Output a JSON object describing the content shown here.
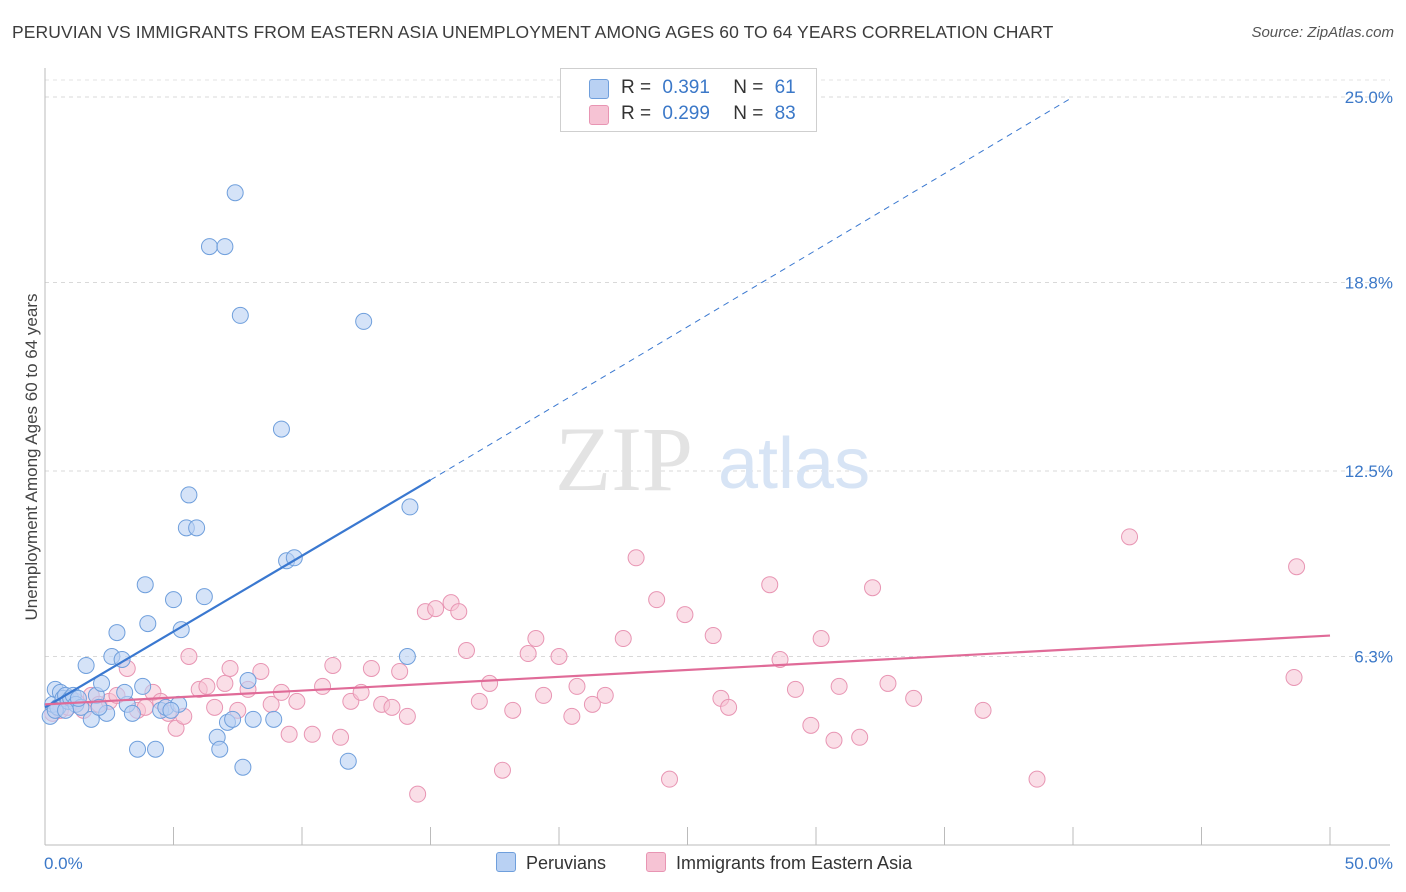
{
  "title": "PERUVIAN VS IMMIGRANTS FROM EASTERN ASIA UNEMPLOYMENT AMONG AGES 60 TO 64 YEARS CORRELATION CHART",
  "source": "Source: ZipAtlas.com",
  "watermark": {
    "zip": "ZIP",
    "atlas": "atlas"
  },
  "legend": {
    "rows": [
      {
        "r_label": "R =",
        "r_value": "0.391",
        "n_label": "N =",
        "n_value": "61"
      },
      {
        "r_label": "R =",
        "r_value": "0.299",
        "n_label": "N =",
        "n_value": "83"
      }
    ]
  },
  "colors": {
    "blue": "#3a78d0",
    "blue_fill": "#b9d1f3",
    "blue_edge": "#6f9fdc",
    "pink": "#e06b98",
    "pink_fill": "#f6c3d4",
    "pink_edge": "#e895b3",
    "tick_text": "#3b78c8"
  },
  "chart_data": {
    "type": "scatter",
    "title": "PERUVIAN VS IMMIGRANTS FROM EASTERN ASIA UNEMPLOYMENT AMONG AGES 60 TO 64 YEARS CORRELATION CHART",
    "xlabel": "",
    "ylabel": "Unemployment Among Ages 60 to 64 years",
    "xlim": [
      0,
      50
    ],
    "ylim": [
      0,
      25
    ],
    "x_tick_labels": [
      "0.0%",
      "50.0%"
    ],
    "y_ticks": [
      6.3,
      12.5,
      18.8,
      25.0
    ],
    "y_tick_labels": [
      "6.3%",
      "12.5%",
      "18.8%",
      "25.0%"
    ],
    "legend_position": "top-center",
    "series": [
      {
        "name": "Peruvians",
        "r": 0.391,
        "n": 61,
        "trend": {
          "x0": 0,
          "y0": 4.6,
          "x1": 15,
          "y1": 12.2,
          "dashed_to_x": 40,
          "dashed_to_y": 25
        },
        "points": [
          [
            0.2,
            4.3
          ],
          [
            0.3,
            4.7
          ],
          [
            0.4,
            5.2
          ],
          [
            0.5,
            4.6
          ],
          [
            0.6,
            5.1
          ],
          [
            0.7,
            4.9
          ],
          [
            0.8,
            5.0
          ],
          [
            0.9,
            4.8
          ],
          [
            1.0,
            4.9
          ],
          [
            1.1,
            5.0
          ],
          [
            1.2,
            4.7
          ],
          [
            1.4,
            4.6
          ],
          [
            1.6,
            6.0
          ],
          [
            1.8,
            4.2
          ],
          [
            2.0,
            5.0
          ],
          [
            2.2,
            5.4
          ],
          [
            2.4,
            4.4
          ],
          [
            2.6,
            6.3
          ],
          [
            2.8,
            7.1
          ],
          [
            3.0,
            6.2
          ],
          [
            3.2,
            4.7
          ],
          [
            3.4,
            4.4
          ],
          [
            3.6,
            3.2
          ],
          [
            3.8,
            5.3
          ],
          [
            3.9,
            8.7
          ],
          [
            4.0,
            7.4
          ],
          [
            4.3,
            3.2
          ],
          [
            4.5,
            4.5
          ],
          [
            4.7,
            4.6
          ],
          [
            5.0,
            8.2
          ],
          [
            5.2,
            4.7
          ],
          [
            5.3,
            7.2
          ],
          [
            5.6,
            11.7
          ],
          [
            5.5,
            10.6
          ],
          [
            5.9,
            10.6
          ],
          [
            6.2,
            8.3
          ],
          [
            6.4,
            20.0
          ],
          [
            6.7,
            3.6
          ],
          [
            6.8,
            3.2
          ],
          [
            7.0,
            20.0
          ],
          [
            7.1,
            4.1
          ],
          [
            7.3,
            4.2
          ],
          [
            7.4,
            21.8
          ],
          [
            7.6,
            17.7
          ],
          [
            7.7,
            2.6
          ],
          [
            7.9,
            5.5
          ],
          [
            8.1,
            4.2
          ],
          [
            8.9,
            4.2
          ],
          [
            9.2,
            13.9
          ],
          [
            9.4,
            9.5
          ],
          [
            9.7,
            9.6
          ],
          [
            11.8,
            2.8
          ],
          [
            12.4,
            17.5
          ],
          [
            14.1,
            6.3
          ],
          [
            14.2,
            11.3
          ],
          [
            0.4,
            4.5
          ],
          [
            1.3,
            4.9
          ],
          [
            2.1,
            4.6
          ],
          [
            3.1,
            5.1
          ],
          [
            4.9,
            4.5
          ],
          [
            0.8,
            4.5
          ]
        ]
      },
      {
        "name": "Immigrants from Eastern Asia",
        "r": 0.299,
        "n": 83,
        "trend": {
          "x0": 0,
          "y0": 4.7,
          "x1": 50,
          "y1": 7.0
        },
        "points": [
          [
            0.3,
            4.4
          ],
          [
            0.6,
            4.5
          ],
          [
            0.9,
            4.6
          ],
          [
            1.2,
            4.8
          ],
          [
            1.5,
            4.5
          ],
          [
            1.8,
            5.0
          ],
          [
            2.1,
            4.7
          ],
          [
            2.5,
            4.8
          ],
          [
            2.8,
            5.0
          ],
          [
            3.2,
            5.9
          ],
          [
            3.6,
            4.5
          ],
          [
            3.9,
            4.6
          ],
          [
            4.2,
            5.1
          ],
          [
            4.5,
            4.8
          ],
          [
            4.8,
            4.4
          ],
          [
            5.1,
            3.9
          ],
          [
            5.4,
            4.3
          ],
          [
            5.6,
            6.3
          ],
          [
            6.0,
            5.2
          ],
          [
            6.3,
            5.3
          ],
          [
            6.6,
            4.6
          ],
          [
            7.0,
            5.4
          ],
          [
            7.2,
            5.9
          ],
          [
            7.5,
            4.5
          ],
          [
            7.9,
            5.2
          ],
          [
            8.4,
            5.8
          ],
          [
            8.8,
            4.7
          ],
          [
            9.2,
            5.1
          ],
          [
            9.5,
            3.7
          ],
          [
            9.8,
            4.8
          ],
          [
            10.4,
            3.7
          ],
          [
            10.8,
            5.3
          ],
          [
            11.2,
            6.0
          ],
          [
            11.5,
            3.6
          ],
          [
            11.9,
            4.8
          ],
          [
            12.3,
            5.1
          ],
          [
            12.7,
            5.9
          ],
          [
            13.1,
            4.7
          ],
          [
            13.5,
            4.6
          ],
          [
            13.8,
            5.8
          ],
          [
            14.1,
            4.3
          ],
          [
            14.5,
            1.7
          ],
          [
            14.8,
            7.8
          ],
          [
            15.2,
            7.9
          ],
          [
            15.8,
            8.1
          ],
          [
            16.1,
            7.8
          ],
          [
            16.4,
            6.5
          ],
          [
            16.9,
            4.8
          ],
          [
            17.3,
            5.4
          ],
          [
            17.8,
            2.5
          ],
          [
            18.2,
            4.5
          ],
          [
            18.8,
            6.4
          ],
          [
            19.1,
            6.9
          ],
          [
            19.4,
            5.0
          ],
          [
            20.0,
            6.3
          ],
          [
            20.5,
            4.3
          ],
          [
            20.7,
            5.3
          ],
          [
            21.3,
            4.7
          ],
          [
            21.8,
            5.0
          ],
          [
            22.5,
            6.9
          ],
          [
            23.0,
            9.6
          ],
          [
            23.8,
            8.2
          ],
          [
            24.3,
            2.2
          ],
          [
            24.9,
            7.7
          ],
          [
            26.0,
            7.0
          ],
          [
            26.3,
            4.9
          ],
          [
            26.6,
            4.6
          ],
          [
            28.2,
            8.7
          ],
          [
            28.6,
            6.2
          ],
          [
            29.2,
            5.2
          ],
          [
            29.8,
            4.0
          ],
          [
            30.2,
            6.9
          ],
          [
            30.7,
            3.5
          ],
          [
            30.9,
            5.3
          ],
          [
            31.7,
            3.6
          ],
          [
            32.2,
            8.6
          ],
          [
            32.8,
            5.4
          ],
          [
            33.8,
            4.9
          ],
          [
            36.5,
            4.5
          ],
          [
            38.6,
            2.2
          ],
          [
            42.2,
            10.3
          ],
          [
            48.6,
            5.6
          ],
          [
            48.7,
            9.3
          ]
        ]
      }
    ]
  },
  "bottom_legend": [
    "Peruvians",
    "Immigrants from Eastern Asia"
  ]
}
